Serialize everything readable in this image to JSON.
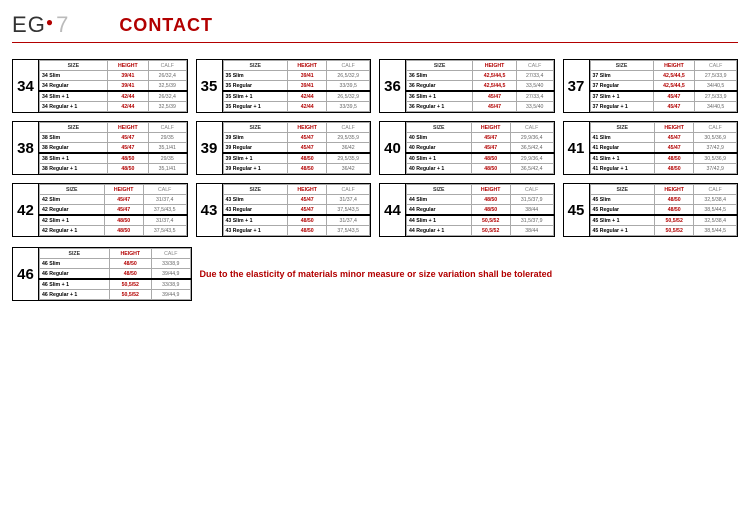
{
  "brand": {
    "e": "E",
    "g": "G",
    "dot": "●",
    "seven": "7"
  },
  "title": "CONTACT",
  "headers": {
    "size": "SIZE",
    "height": "HEIGHT",
    "calf": "CALF"
  },
  "note": "Due to the elasticity of materials minor measure or size variation shall be tolerated",
  "blocks": [
    {
      "n": "34",
      "rows": [
        {
          "s": "34 Slim",
          "h": "39/41",
          "c": "26/32,4"
        },
        {
          "s": "34 Regular",
          "h": "39/41",
          "c": "32,5/39"
        },
        {
          "s": "34 Slim + 1",
          "h": "42/44",
          "c": "26/32,4",
          "sep": true
        },
        {
          "s": "34 Regular + 1",
          "h": "42/44",
          "c": "32,5/39"
        }
      ]
    },
    {
      "n": "35",
      "rows": [
        {
          "s": "35 Slim",
          "h": "39/41",
          "c": "26,5/32,9"
        },
        {
          "s": "35 Regular",
          "h": "39/41",
          "c": "33/39,5"
        },
        {
          "s": "35 Slim + 1",
          "h": "42/44",
          "c": "26,5/32,9",
          "sep": true
        },
        {
          "s": "35 Regular + 1",
          "h": "42/44",
          "c": "33/39,5"
        }
      ]
    },
    {
      "n": "36",
      "rows": [
        {
          "s": "36 Slim",
          "h": "42,5/44,5",
          "c": "27/33,4"
        },
        {
          "s": "36 Regular",
          "h": "42,5/44,5",
          "c": "33,5/40"
        },
        {
          "s": "36 Slim + 1",
          "h": "45/47",
          "c": "27/33,4",
          "sep": true
        },
        {
          "s": "36 Regular + 1",
          "h": "45/47",
          "c": "33,5/40"
        }
      ]
    },
    {
      "n": "37",
      "rows": [
        {
          "s": "37 Slim",
          "h": "42,5/44,5",
          "c": "27,5/33,9"
        },
        {
          "s": "37 Regular",
          "h": "42,5/44,5",
          "c": "34/40,5"
        },
        {
          "s": "37 Slim + 1",
          "h": "45/47",
          "c": "27,5/33,9",
          "sep": true
        },
        {
          "s": "37 Regular + 1",
          "h": "45/47",
          "c": "34/40,5"
        }
      ]
    },
    {
      "n": "38",
      "rows": [
        {
          "s": "38 Slim",
          "h": "45/47",
          "c": "29/35"
        },
        {
          "s": "38 Regular",
          "h": "45/47",
          "c": "35,1/41"
        },
        {
          "s": "38 Slim + 1",
          "h": "48/50",
          "c": "29/35",
          "sep": true
        },
        {
          "s": "38 Regular + 1",
          "h": "48/50",
          "c": "35,1/41"
        }
      ]
    },
    {
      "n": "39",
      "rows": [
        {
          "s": "39 Slim",
          "h": "45/47",
          "c": "29,5/35,9"
        },
        {
          "s": "39 Regular",
          "h": "45/47",
          "c": "36/42"
        },
        {
          "s": "39 Slim + 1",
          "h": "48/50",
          "c": "29,5/35,9",
          "sep": true
        },
        {
          "s": "39 Regular + 1",
          "h": "48/50",
          "c": "36/42"
        }
      ]
    },
    {
      "n": "40",
      "rows": [
        {
          "s": "40 Slim",
          "h": "45/47",
          "c": "29,9/36,4"
        },
        {
          "s": "40 Regular",
          "h": "45/47",
          "c": "36,5/42,4"
        },
        {
          "s": "40 Slim + 1",
          "h": "48/50",
          "c": "29,9/36,4",
          "sep": true
        },
        {
          "s": "40 Regular + 1",
          "h": "48/50",
          "c": "36,5/42,4"
        }
      ]
    },
    {
      "n": "41",
      "rows": [
        {
          "s": "41 Slim",
          "h": "45/47",
          "c": "30,5/36,9"
        },
        {
          "s": "41 Regular",
          "h": "45/47",
          "c": "37/42,9"
        },
        {
          "s": "41 Slim + 1",
          "h": "48/50",
          "c": "30,5/36,9",
          "sep": true
        },
        {
          "s": "41 Regular + 1",
          "h": "48/50",
          "c": "37/42,9"
        }
      ]
    },
    {
      "n": "42",
      "rows": [
        {
          "s": "42 Slim",
          "h": "45/47",
          "c": "31/37,4"
        },
        {
          "s": "42 Regular",
          "h": "45/47",
          "c": "37,5/43,5"
        },
        {
          "s": "42 Slim + 1",
          "h": "48/50",
          "c": "31/37,4",
          "sep": true
        },
        {
          "s": "42 Regular + 1",
          "h": "48/50",
          "c": "37,5/43,5"
        }
      ]
    },
    {
      "n": "43",
      "rows": [
        {
          "s": "43 Slim",
          "h": "45/47",
          "c": "31/37,4"
        },
        {
          "s": "43 Regular",
          "h": "45/47",
          "c": "37,5/43,5"
        },
        {
          "s": "43 Slim + 1",
          "h": "48/50",
          "c": "31/37,4",
          "sep": true
        },
        {
          "s": "43 Regular + 1",
          "h": "48/50",
          "c": "37,5/43,5"
        }
      ]
    },
    {
      "n": "44",
      "rows": [
        {
          "s": "44 Slim",
          "h": "48/50",
          "c": "31,5/37,9"
        },
        {
          "s": "44 Regular",
          "h": "48/50",
          "c": "38/44"
        },
        {
          "s": "44 Slim + 1",
          "h": "50,5/52",
          "c": "31,5/37,9",
          "sep": true
        },
        {
          "s": "44 Regular + 1",
          "h": "50,5/52",
          "c": "38/44"
        }
      ]
    },
    {
      "n": "45",
      "rows": [
        {
          "s": "45 Slim",
          "h": "48/50",
          "c": "32,5/38,4"
        },
        {
          "s": "45 Regular",
          "h": "48/50",
          "c": "38,5/44,5"
        },
        {
          "s": "45 Slim + 1",
          "h": "50,5/52",
          "c": "32,5/38,4",
          "sep": true
        },
        {
          "s": "45 Regular + 1",
          "h": "50,5/52",
          "c": "38,5/44,5"
        }
      ]
    },
    {
      "n": "46",
      "rows": [
        {
          "s": "46 Slim",
          "h": "48/50",
          "c": "33/38,9"
        },
        {
          "s": "46 Regular",
          "h": "48/50",
          "c": "39/44,9"
        },
        {
          "s": "46 Slim + 1",
          "h": "50,5/52",
          "c": "33/38,9",
          "sep": true
        },
        {
          "s": "46 Regular + 1",
          "h": "50,5/52",
          "c": "39/44,9"
        }
      ]
    }
  ]
}
